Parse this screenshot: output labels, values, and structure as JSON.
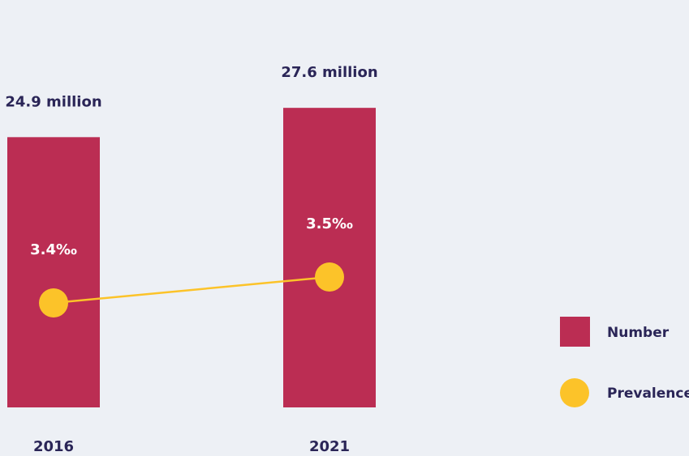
{
  "colors": {
    "background": "#edf0f5",
    "bar": "#bb2d53",
    "marker": "#fcc329",
    "line": "#fcc329",
    "text": "#2a2557"
  },
  "chart_data": {
    "type": "bar",
    "categories": [
      "2016",
      "2021"
    ],
    "series": [
      {
        "name": "Number",
        "unit": "million",
        "values": [
          24.9,
          27.6
        ],
        "labels": [
          "24.9 million",
          "27.6 million"
        ]
      },
      {
        "name": "Prevalence",
        "unit": "‰",
        "values": [
          3.4,
          3.5
        ],
        "labels": [
          "3.4‰",
          "3.5‰"
        ],
        "render_as": "line-with-markers"
      }
    ],
    "title": "",
    "xlabel": "",
    "ylabel": "",
    "ylim": [
      0,
      30
    ],
    "grid": false,
    "legend": {
      "position": "right",
      "items": [
        {
          "label": "Number",
          "symbol": "square",
          "color": "#bb2d53"
        },
        {
          "label": "Prevalence",
          "symbol": "circle",
          "color": "#fcc329"
        }
      ]
    }
  }
}
